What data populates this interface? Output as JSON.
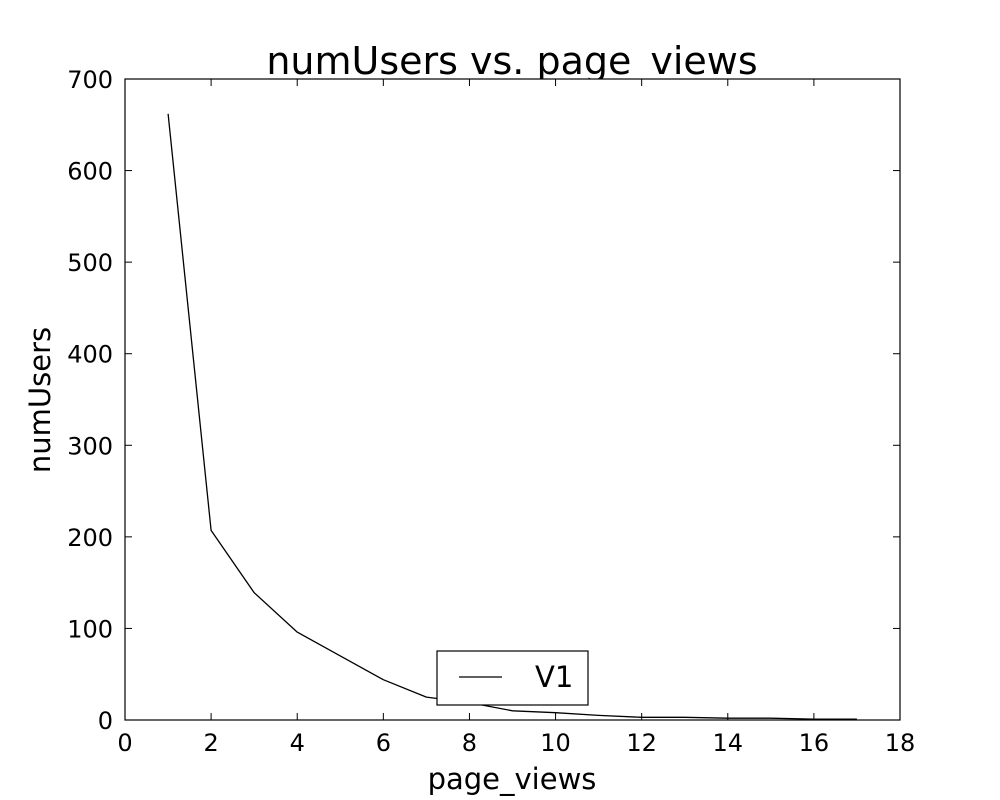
{
  "chart_data": {
    "type": "line",
    "title": "numUsers vs. page_views",
    "xlabel": "page_views",
    "ylabel": "numUsers",
    "xlim": [
      0,
      18
    ],
    "ylim": [
      0,
      700
    ],
    "xticks": [
      0,
      2,
      4,
      6,
      8,
      10,
      12,
      14,
      16,
      18
    ],
    "yticks": [
      0,
      100,
      200,
      300,
      400,
      500,
      600,
      700
    ],
    "grid": false,
    "legend": {
      "position": "lower-center"
    },
    "series": [
      {
        "name": "V1",
        "color": "#000000",
        "x": [
          1,
          2,
          3,
          4,
          5,
          6,
          7,
          8,
          9,
          10,
          11,
          12,
          13,
          14,
          15,
          16,
          17
        ],
        "y": [
          662,
          207,
          139,
          96,
          70,
          44,
          25,
          19,
          10,
          8,
          5,
          3,
          3,
          2,
          2,
          1,
          1
        ]
      }
    ]
  }
}
